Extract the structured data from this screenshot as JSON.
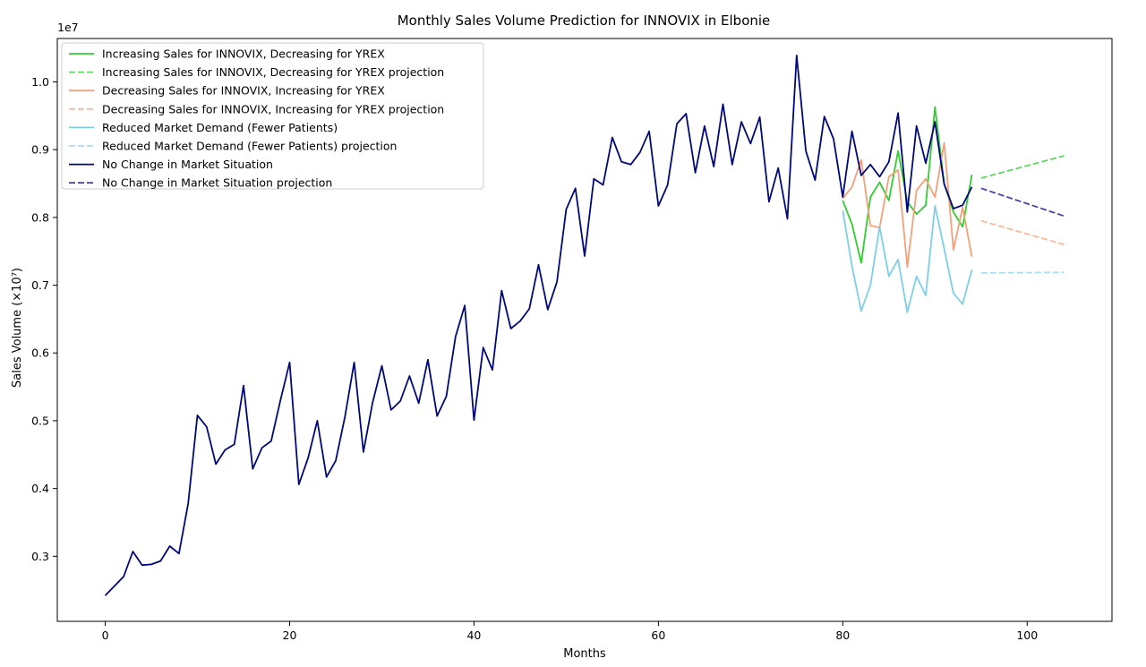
{
  "chart_data": {
    "type": "line",
    "title": "Monthly Sales Volume Prediction for INNOVIX in Elbonie",
    "xlabel": "Months",
    "ylabel": "Sales Volume (×10⁷)",
    "y_offset_label": "1e7",
    "xlim": [
      -5.2,
      109.2
    ],
    "ylim": [
      2.04,
      10.64
    ],
    "xticks": [
      0,
      20,
      40,
      60,
      80,
      100
    ],
    "yticks": [
      3,
      4,
      5,
      6,
      7,
      8,
      9,
      10
    ],
    "ytick_labels": [
      "0.3",
      "0.4",
      "0.5",
      "0.6",
      "0.7",
      "0.8",
      "0.9",
      "1.0"
    ],
    "grid": false,
    "legend_position": "upper-left",
    "series": [
      {
        "name": "Increasing Sales for INNOVIX, Decreasing for YREX",
        "color": "#32cd32",
        "style": "solid",
        "x": [
          80,
          81,
          82,
          83,
          84,
          85,
          86,
          87,
          88,
          89,
          90,
          91,
          92,
          93,
          94
        ],
        "y": [
          8.25,
          7.9,
          7.33,
          8.3,
          8.52,
          8.25,
          8.98,
          8.23,
          8.05,
          8.18,
          9.63,
          8.5,
          8.08,
          7.86,
          8.63
        ]
      },
      {
        "name": "Increasing Sales for INNOVIX, Decreasing for YREX projection",
        "color": "#5fd85f",
        "style": "dashed",
        "x": [
          95,
          104
        ],
        "y": [
          8.58,
          8.91
        ]
      },
      {
        "name": "Decreasing Sales for INNOVIX, Increasing for YREX",
        "color": "#f4a07a",
        "style": "solid",
        "x": [
          80,
          81,
          82,
          83,
          84,
          85,
          86,
          87,
          88,
          89,
          90,
          91,
          92,
          93,
          94
        ],
        "y": [
          8.28,
          8.45,
          8.85,
          7.88,
          7.85,
          8.6,
          8.7,
          7.27,
          8.4,
          8.57,
          8.3,
          9.1,
          7.52,
          8.15,
          7.42
        ]
      },
      {
        "name": "Decreasing Sales for INNOVIX, Increasing for YREX projection",
        "color": "#f9b99a",
        "style": "dashed",
        "x": [
          95,
          104
        ],
        "y": [
          7.95,
          7.6
        ]
      },
      {
        "name": "Reduced Market Demand (Fewer Patients)",
        "color": "#7ecfe6",
        "style": "solid",
        "x": [
          80,
          81,
          82,
          83,
          84,
          85,
          86,
          87,
          88,
          89,
          90,
          91,
          92,
          93,
          94
        ],
        "y": [
          8.1,
          7.28,
          6.62,
          7.0,
          7.86,
          7.13,
          7.38,
          6.6,
          7.13,
          6.85,
          8.17,
          7.54,
          6.88,
          6.72,
          7.23
        ]
      },
      {
        "name": "Reduced Market Demand (Fewer Patients) projection",
        "color": "#a8def0",
        "style": "dashed",
        "x": [
          95,
          104
        ],
        "y": [
          7.18,
          7.19
        ]
      },
      {
        "name": "No Change in Market Situation",
        "color": "#00087a",
        "style": "solid",
        "x": [
          0,
          1,
          2,
          3,
          4,
          5,
          6,
          7,
          8,
          9,
          10,
          11,
          12,
          13,
          14,
          15,
          16,
          17,
          18,
          19,
          20,
          21,
          22,
          23,
          24,
          25,
          26,
          27,
          28,
          29,
          30,
          31,
          32,
          33,
          34,
          35,
          36,
          37,
          38,
          39,
          40,
          41,
          42,
          43,
          44,
          45,
          46,
          47,
          48,
          49,
          50,
          51,
          52,
          53,
          54,
          55,
          56,
          57,
          58,
          59,
          60,
          61,
          62,
          63,
          64,
          65,
          66,
          67,
          68,
          69,
          70,
          71,
          72,
          73,
          74,
          75,
          76,
          77,
          78,
          79,
          80,
          81,
          82,
          83,
          84,
          85,
          86,
          87,
          88,
          89,
          90,
          91,
          92,
          93,
          94
        ],
        "y": [
          2.42,
          2.56,
          2.7,
          3.07,
          2.87,
          2.88,
          2.93,
          3.15,
          3.04,
          3.78,
          5.08,
          4.91,
          4.36,
          4.57,
          4.65,
          5.52,
          4.29,
          4.6,
          4.7,
          5.3,
          5.86,
          4.06,
          4.45,
          5.0,
          4.17,
          4.41,
          5.06,
          5.86,
          4.54,
          5.27,
          5.81,
          5.16,
          5.29,
          5.66,
          5.26,
          5.9,
          5.07,
          5.36,
          6.24,
          6.7,
          5.01,
          6.08,
          5.75,
          6.92,
          6.36,
          6.47,
          6.65,
          7.3,
          6.64,
          7.05,
          8.12,
          8.43,
          7.43,
          8.57,
          8.48,
          9.18,
          8.82,
          8.78,
          8.96,
          9.27,
          8.17,
          8.48,
          9.38,
          9.53,
          8.66,
          9.35,
          8.75,
          9.67,
          8.78,
          9.41,
          9.09,
          9.48,
          8.23,
          8.73,
          7.98,
          10.39,
          8.98,
          8.55,
          9.49,
          9.16,
          8.3,
          9.27,
          8.62,
          8.78,
          8.6,
          8.82,
          9.54,
          8.08,
          9.35,
          8.8,
          9.41,
          8.49,
          8.13,
          8.18,
          8.45
        ]
      },
      {
        "name": "No Change in Market Situation projection",
        "color": "#4545a8",
        "style": "dashed",
        "x": [
          95,
          104
        ],
        "y": [
          8.43,
          8.02
        ]
      }
    ]
  }
}
